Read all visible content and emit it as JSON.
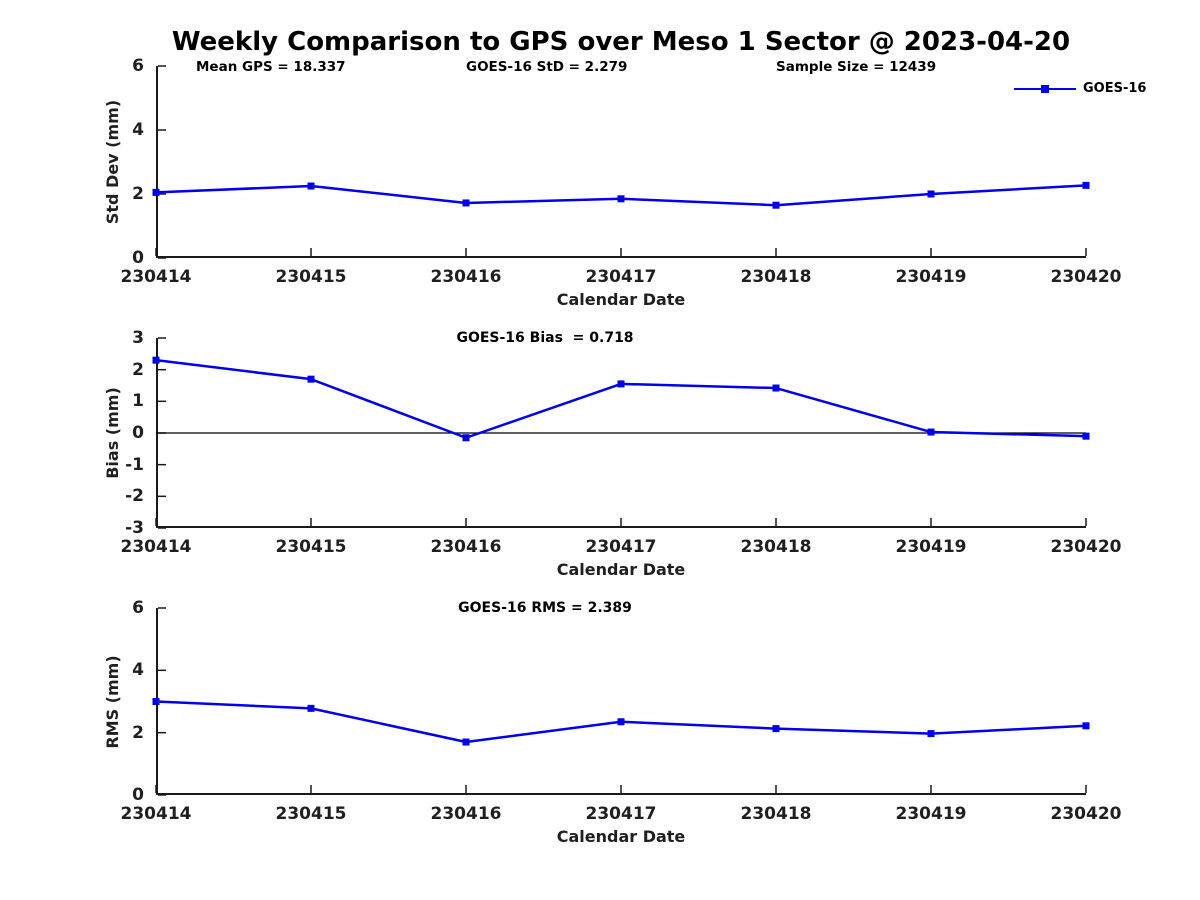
{
  "figure_title": "Weekly Comparison to GPS over Meso 1 Sector @ 2023-04-20",
  "colors": {
    "series_line": "#0000EE",
    "axis": "#1a1a1a",
    "text": "#000000",
    "zero_line": "#000000"
  },
  "legend": {
    "label": "GOES-16",
    "position": "top-right",
    "box": false
  },
  "chart_data": [
    {
      "type": "line",
      "title": "",
      "ylabel": "Std Dev (mm)",
      "xlabel": "Calendar Date",
      "x": [
        "230414",
        "230415",
        "230416",
        "230417",
        "230418",
        "230419",
        "230420"
      ],
      "series": [
        {
          "name": "GOES-16",
          "color": "#0000EE",
          "marker": "square",
          "values": [
            2.05,
            2.25,
            1.72,
            1.85,
            1.65,
            2.0,
            2.27
          ]
        }
      ],
      "ylim": [
        0,
        6
      ],
      "yticks": [
        0,
        2,
        4,
        6
      ],
      "grid": false,
      "zero_line": false,
      "annotations": [
        "Mean GPS = 18.337",
        "GOES-16 StD = 2.279",
        "Sample Size = 12439"
      ],
      "legend_entries": [
        "GOES-16"
      ]
    },
    {
      "type": "line",
      "title": "GOES-16 Bias  = 0.718",
      "ylabel": "Bias (mm)",
      "xlabel": "Calendar Date",
      "x": [
        "230414",
        "230415",
        "230416",
        "230417",
        "230418",
        "230419",
        "230420"
      ],
      "series": [
        {
          "name": "GOES-16",
          "color": "#0000EE",
          "marker": "square",
          "values": [
            2.3,
            1.7,
            -0.15,
            1.55,
            1.42,
            0.03,
            -0.1
          ]
        }
      ],
      "ylim": [
        -3,
        3
      ],
      "yticks": [
        -3,
        -2,
        -1,
        0,
        1,
        2,
        3
      ],
      "grid": false,
      "zero_line": true
    },
    {
      "type": "line",
      "title": "GOES-16 RMS = 2.389",
      "ylabel": "RMS (mm)",
      "xlabel": "Calendar Date",
      "x": [
        "230414",
        "230415",
        "230416",
        "230417",
        "230418",
        "230419",
        "230420"
      ],
      "series": [
        {
          "name": "GOES-16",
          "color": "#0000EE",
          "marker": "square",
          "values": [
            3.0,
            2.78,
            1.7,
            2.35,
            2.13,
            1.97,
            2.22
          ]
        }
      ],
      "ylim": [
        0,
        6
      ],
      "yticks": [
        0,
        2,
        4,
        6
      ],
      "grid": false,
      "zero_line": false
    }
  ]
}
